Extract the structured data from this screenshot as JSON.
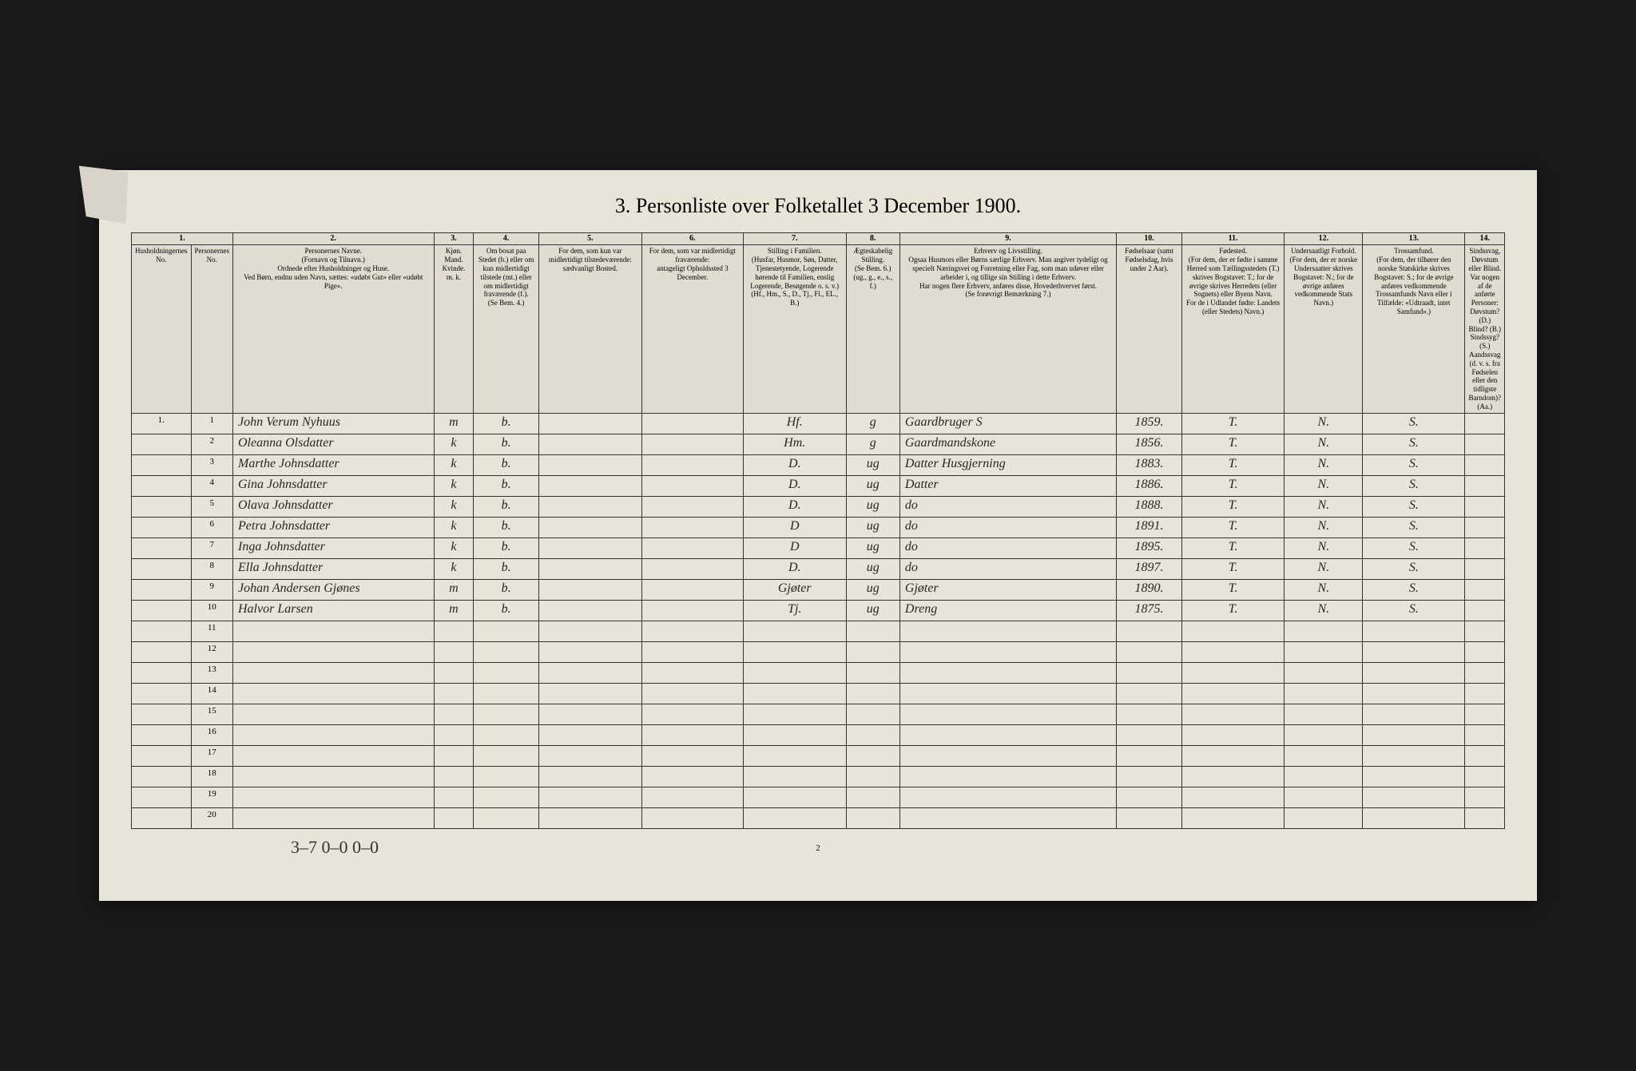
{
  "title": "3. Personliste over Folketallet 3 December 1900.",
  "columns": {
    "nums": [
      "1.",
      "2.",
      "3.",
      "4.",
      "5.",
      "6.",
      "7.",
      "8.",
      "9.",
      "10.",
      "11.",
      "12.",
      "13.",
      "14."
    ],
    "headers": [
      "Husholdningernes No.",
      "Personernes No.",
      "Personernes Navne.\n(Fornavn og Tilnavn.)\nOrdnede efter Husholdninger og Huse.\nVed Børn, endnu uden Navn, sættes: «udøbt Gut» eller «udøbt Pige».",
      "Kjøn.\nMand.\nKvinde.\nm. k.",
      "Om bosat paa Stedet (b.) eller om kun midlertidigt tilstede (mt.) eller om midlertidigt fraværende (f.).\n(Se Bem. 4.)",
      "For dem, som kun var midlertidigt tilstedeværende:\nsædvanligt Bosted.",
      "For dem, som var midlertidigt fraværende:\nantageligt Opholdssted 3 December.",
      "Stilling i Familien.\n(Husfar, Husmor, Søn, Datter, Tjenestetyende, Logerende hørende til Familien, enslig Logerende, Besøgende o. s. v.)\n(Hf., Hm., S., D., Tj., Fl., EL., B.)",
      "Ægteskabelig Stilling.\n(Se Bem. 6.)\n(ug., g., e., s., f.)",
      "Erhverv og Livsstilling.\nOgsaa Husmors eller Børns særlige Erhverv. Man angiver tydeligt og specielt Næringsvei og Forretning eller Fag, som man udøver eller arbeider i, og tillige sin Stilling i dette Erhverv.\nHar nogen flere Erhverv, anføres disse, Hovederhvervet først.\n(Se forøvrigt Bemærkning 7.)",
      "Fødselsaar (samt Fødselsdag, hvis under 2 Aar).",
      "Fødested.\n(For dem, der er fødte i samme Herred som Tællingsstedets (T.) skrives Bogstavet: T.; for de øvrige skrives Herredets (eller Sognets) eller Byens Navn.\nFor de i Udlandet fødte: Landets (eller Stedets) Navn.)",
      "Undersaatligt Forhold.\n(For dem, der er norske Undersaatter skrives Bogstavet: N.; for de øvrige anføres vedkommende Stats Navn.)",
      "Trossamfund.\n(For dem, der tilhører den norske Statskirke skrives Bogstavet: S.; for de øvrige anføres vedkommende Trossamfunds Navn eller i Tilfælde: «Udtraadt, intet Samfund».)",
      "Sindssvag, Døvstum eller Blind.\nVar nogen af de anførte Personer:\nDøvstum? (D.)\nBlind? (B.)\nSindssyg? (S.)\nAandssvag (d. v. s. fra Fødselen eller den tidligste Barndom)? (Aa.)"
    ]
  },
  "rows": [
    {
      "hh": "1.",
      "pn": "1",
      "name": "John Verum Nyhuus",
      "sex": "m",
      "res": "b.",
      "col6": "",
      "col7": "",
      "famrel": "Hf.",
      "marital": "g",
      "occupation": "Gaardbruger S",
      "birthyear": "1859.",
      "birthplace": "T.",
      "nationality": "N.",
      "faith": "S.",
      "col14": ""
    },
    {
      "hh": "",
      "pn": "2",
      "name": "Oleanna Olsdatter",
      "sex": "k",
      "res": "b.",
      "col6": "",
      "col7": "",
      "famrel": "Hm.",
      "marital": "g",
      "occupation": "Gaardmandskone",
      "birthyear": "1856.",
      "birthplace": "T.",
      "nationality": "N.",
      "faith": "S.",
      "col14": ""
    },
    {
      "hh": "",
      "pn": "3",
      "name": "Marthe Johnsdatter",
      "sex": "k",
      "res": "b.",
      "col6": "",
      "col7": "",
      "famrel": "D.",
      "marital": "ug",
      "occupation": "Datter Husgjerning",
      "birthyear": "1883.",
      "birthplace": "T.",
      "nationality": "N.",
      "faith": "S.",
      "col14": ""
    },
    {
      "hh": "",
      "pn": "4",
      "name": "Gina Johnsdatter",
      "sex": "k",
      "res": "b.",
      "col6": "",
      "col7": "",
      "famrel": "D.",
      "marital": "ug",
      "occupation": "Datter",
      "birthyear": "1886.",
      "birthplace": "T.",
      "nationality": "N.",
      "faith": "S.",
      "col14": ""
    },
    {
      "hh": "",
      "pn": "5",
      "name": "Olava Johnsdatter",
      "sex": "k",
      "res": "b.",
      "col6": "",
      "col7": "",
      "famrel": "D.",
      "marital": "ug",
      "occupation": "do",
      "birthyear": "1888.",
      "birthplace": "T.",
      "nationality": "N.",
      "faith": "S.",
      "col14": ""
    },
    {
      "hh": "",
      "pn": "6",
      "name": "Petra Johnsdatter",
      "sex": "k",
      "res": "b.",
      "col6": "",
      "col7": "",
      "famrel": "D",
      "marital": "ug",
      "occupation": "do",
      "birthyear": "1891.",
      "birthplace": "T.",
      "nationality": "N.",
      "faith": "S.",
      "col14": ""
    },
    {
      "hh": "",
      "pn": "7",
      "name": "Inga Johnsdatter",
      "sex": "k",
      "res": "b.",
      "col6": "",
      "col7": "",
      "famrel": "D",
      "marital": "ug",
      "occupation": "do",
      "birthyear": "1895.",
      "birthplace": "T.",
      "nationality": "N.",
      "faith": "S.",
      "col14": ""
    },
    {
      "hh": "",
      "pn": "8",
      "name": "Ella Johnsdatter",
      "sex": "k",
      "res": "b.",
      "col6": "",
      "col7": "",
      "famrel": "D.",
      "marital": "ug",
      "occupation": "do",
      "birthyear": "1897.",
      "birthplace": "T.",
      "nationality": "N.",
      "faith": "S.",
      "col14": ""
    },
    {
      "hh": "",
      "pn": "9",
      "name": "Johan Andersen Gjønes",
      "sex": "m",
      "res": "b.",
      "col6": "",
      "col7": "",
      "famrel": "Gjøter",
      "marital": "ug",
      "occupation": "Gjøter",
      "birthyear": "1890.",
      "birthplace": "T.",
      "nationality": "N.",
      "faith": "S.",
      "col14": ""
    },
    {
      "hh": "",
      "pn": "10",
      "name": "Halvor Larsen",
      "sex": "m",
      "res": "b.",
      "col6": "",
      "col7": "",
      "famrel": "Tj.",
      "marital": "ug",
      "occupation": "Dreng",
      "birthyear": "1875.",
      "birthplace": "T.",
      "nationality": "N.",
      "faith": "S.",
      "col14": ""
    }
  ],
  "empty_rows": [
    "11",
    "12",
    "13",
    "14",
    "15",
    "16",
    "17",
    "18",
    "19",
    "20"
  ],
  "footer": "3–7  0–0   0–0",
  "page_number": "2",
  "layout": {
    "col_widths_pct": [
      2,
      2,
      16,
      3,
      5,
      8,
      8,
      8,
      4,
      17,
      5,
      8,
      6,
      8,
      6
    ],
    "colors": {
      "page_bg": "#e8e4d8",
      "border": "#333333",
      "header_bg": "#e0dcd0",
      "ink": "#2a2520",
      "outer_bg": "#1a1a1a"
    },
    "fontsize": {
      "title": 26,
      "header": 9,
      "body": 11,
      "handwritten": 16
    }
  }
}
